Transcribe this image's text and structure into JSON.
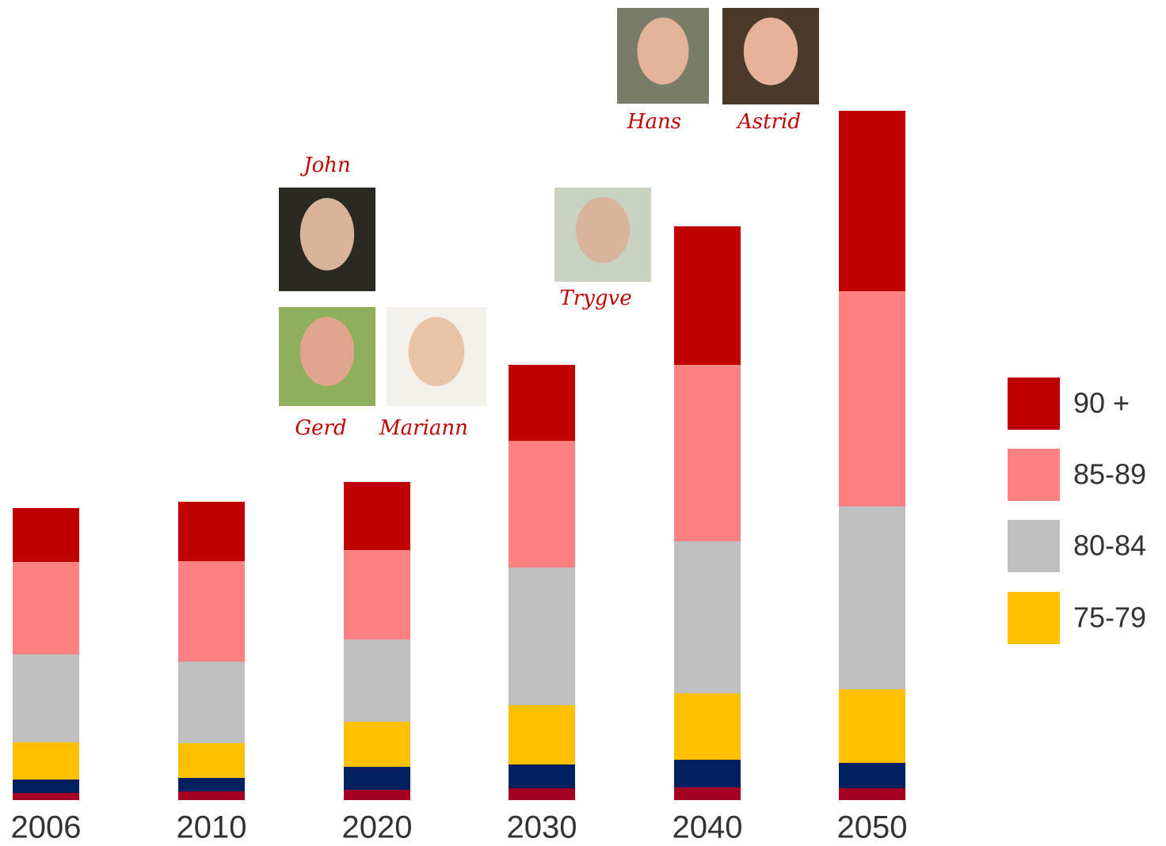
{
  "chart_data": {
    "type": "stacked-bar",
    "categories": [
      "2006",
      "2010",
      "2020",
      "2030",
      "2040",
      "2050"
    ],
    "series": [
      {
        "color": "#a50021",
        "values": [
          9,
          11,
          13,
          15,
          16,
          15
        ]
      },
      {
        "color": "#002060",
        "values": [
          17,
          17,
          29,
          30,
          35,
          32
        ]
      },
      {
        "name": "75-79",
        "color": "#ffc000",
        "values": [
          47,
          44,
          57,
          75,
          84,
          93
        ]
      },
      {
        "name": "80-84",
        "color": "#bfbfbf",
        "values": [
          111,
          103,
          104,
          174,
          192,
          231
        ]
      },
      {
        "name": "85-89",
        "color": "#ff8080",
        "values": [
          117,
          127,
          113,
          160,
          223,
          272
        ]
      },
      {
        "name": "90 +",
        "color": "#c00000",
        "values": [
          68,
          75,
          86,
          96,
          175,
          228
        ]
      }
    ],
    "annotations": [
      "John",
      "Gerd",
      "Mariann",
      "Trygve",
      "Hans",
      "Astrid"
    ]
  }
}
